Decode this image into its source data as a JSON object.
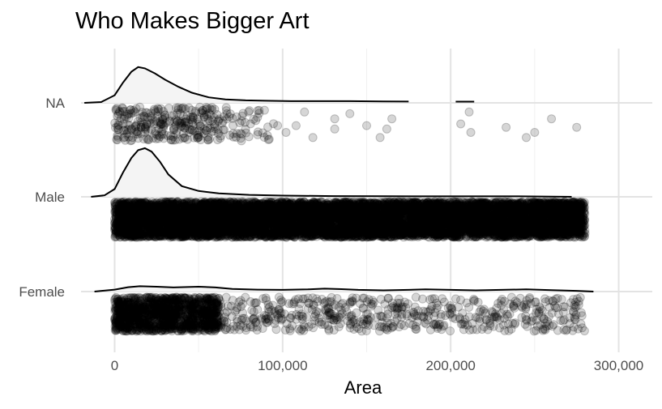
{
  "chart_data": {
    "type": "scatter",
    "subtype": "raincloud (density ridges with jittered points)",
    "title": "Who Makes Bigger Art",
    "xlabel": "Area",
    "ylabel": "",
    "xlim": [
      -20000,
      320000
    ],
    "x_ticks": [
      0,
      100000,
      200000,
      300000
    ],
    "x_tick_labels": [
      "0",
      "100,000",
      "200,000",
      "300,000"
    ],
    "categories": [
      "NA",
      "Male",
      "Female"
    ],
    "grid": true,
    "legend": "none",
    "series": [
      {
        "category": "NA",
        "density": {
          "x": [
            -18000,
            -8000,
            0,
            5000,
            10000,
            14000,
            18000,
            24000,
            30000,
            38000,
            46000,
            56000,
            66000,
            78000,
            90000,
            105000,
            120000,
            140000,
            160000,
            175000
          ],
          "y": [
            0.0,
            0.02,
            0.18,
            0.48,
            0.74,
            0.85,
            0.82,
            0.7,
            0.55,
            0.38,
            0.24,
            0.13,
            0.08,
            0.06,
            0.05,
            0.04,
            0.04,
            0.04,
            0.035,
            0.03
          ]
        },
        "density_segment": {
          "x": [
            203000,
            214000
          ],
          "y": [
            0.03,
            0.03
          ]
        },
        "points": [
          [
            206000,
            0.5
          ],
          [
            211000,
            0.15
          ],
          [
            212000,
            0.75
          ],
          [
            233000,
            0.6
          ],
          [
            245000,
            0.9
          ],
          [
            250000,
            0.75
          ],
          [
            260000,
            0.35
          ],
          [
            275000,
            0.6
          ],
          [
            140000,
            0.2
          ],
          [
            150000,
            0.55
          ],
          [
            158000,
            0.9
          ],
          [
            162000,
            0.65
          ],
          [
            165000,
            0.35
          ],
          [
            131000,
            0.65
          ],
          [
            131000,
            0.35
          ],
          [
            118000,
            0.9
          ],
          [
            108000,
            0.55
          ],
          [
            113000,
            0.15
          ],
          [
            97000,
            0.55
          ],
          [
            102000,
            0.75
          ],
          [
            92000,
            0.95
          ],
          [
            86000,
            0.1
          ],
          [
            84000,
            0.4
          ]
        ],
        "dense_cluster": {
          "x_range": [
            0,
            95000
          ],
          "count": 320,
          "dense_until": 62000
        }
      },
      {
        "category": "Male",
        "density": {
          "x": [
            -14000,
            -6000,
            0,
            5000,
            10000,
            14000,
            18000,
            22000,
            27000,
            32000,
            40000,
            50000,
            62000,
            80000,
            100000,
            130000,
            160000,
            200000,
            240000,
            272000
          ],
          "y": [
            0.0,
            0.03,
            0.16,
            0.5,
            0.8,
            0.96,
            1.0,
            0.93,
            0.72,
            0.46,
            0.22,
            0.12,
            0.07,
            0.04,
            0.025,
            0.015,
            0.012,
            0.01,
            0.01,
            0.0
          ]
        },
        "dense_cluster": {
          "x_range": [
            0,
            280000
          ],
          "count": 9000,
          "dense_until": 280000
        }
      },
      {
        "category": "Female",
        "density": {
          "x": [
            -12000,
            0,
            8000,
            15000,
            25000,
            35000,
            50000,
            60000,
            70000,
            85000,
            100000,
            115000,
            125000,
            135000,
            145000,
            160000,
            175000,
            185000,
            200000,
            215000,
            230000,
            245000,
            260000,
            275000,
            285000
          ],
          "y": [
            0.0,
            0.04,
            0.09,
            0.11,
            0.1,
            0.085,
            0.1,
            0.085,
            0.055,
            0.04,
            0.035,
            0.045,
            0.06,
            0.05,
            0.035,
            0.025,
            0.035,
            0.045,
            0.035,
            0.025,
            0.035,
            0.045,
            0.03,
            0.015,
            0.0
          ]
        },
        "dense_cluster": {
          "x_range": [
            0,
            280000
          ],
          "count": 1800,
          "dense_until": 62000
        }
      }
    ]
  }
}
